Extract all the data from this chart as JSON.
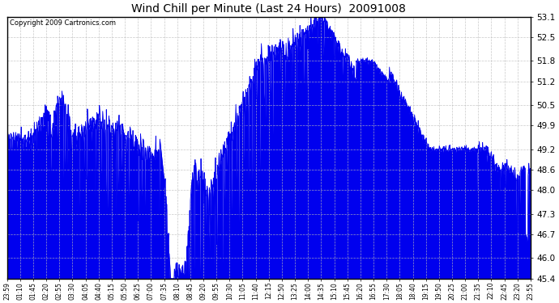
{
  "title": "Wind Chill per Minute (Last 24 Hours)  20091008",
  "copyright": "Copyright 2009 Cartronics.com",
  "line_color": "#0000EE",
  "fill_color": "#0000EE",
  "background_color": "#FFFFFF",
  "grid_color": "#BBBBBB",
  "ylim": [
    45.4,
    53.1
  ],
  "yticks": [
    45.4,
    46.0,
    46.7,
    47.3,
    48.0,
    48.6,
    49.2,
    49.9,
    50.5,
    51.2,
    51.8,
    52.5,
    53.1
  ],
  "xtick_labels": [
    "23:59",
    "01:10",
    "01:45",
    "02:20",
    "02:55",
    "03:30",
    "04:05",
    "04:40",
    "05:15",
    "05:50",
    "06:25",
    "07:00",
    "07:35",
    "08:10",
    "08:45",
    "09:20",
    "09:55",
    "10:30",
    "11:05",
    "11:40",
    "12:15",
    "12:50",
    "13:25",
    "14:00",
    "14:35",
    "15:10",
    "15:45",
    "16:20",
    "16:55",
    "17:30",
    "18:05",
    "18:40",
    "19:15",
    "19:50",
    "20:25",
    "21:00",
    "21:35",
    "22:10",
    "22:45",
    "23:20",
    "23:55"
  ],
  "n_points": 1440,
  "seed": 1234
}
